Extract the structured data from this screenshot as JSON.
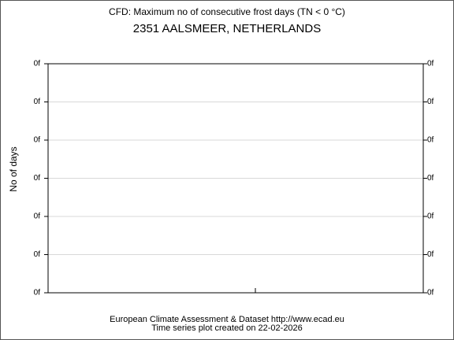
{
  "title": "CFD: Maximum no of consecutive frost days (TN < 0 °C)",
  "subtitle": "2351 AALSMEER, NETHERLANDS",
  "y_axis_label": "No of days",
  "left_tick_labels": [
    "0f",
    "0f",
    "0f",
    "0f",
    "0f",
    "0f",
    "0f"
  ],
  "right_tick_labels": [
    "0f",
    "0f",
    "0f",
    "0f",
    "0f",
    "0f",
    "0f"
  ],
  "footer": [
    "European Climate Assessment & Dataset  http://www.ecad.eu",
    "Time series plot created on 22-02-2026"
  ]
}
